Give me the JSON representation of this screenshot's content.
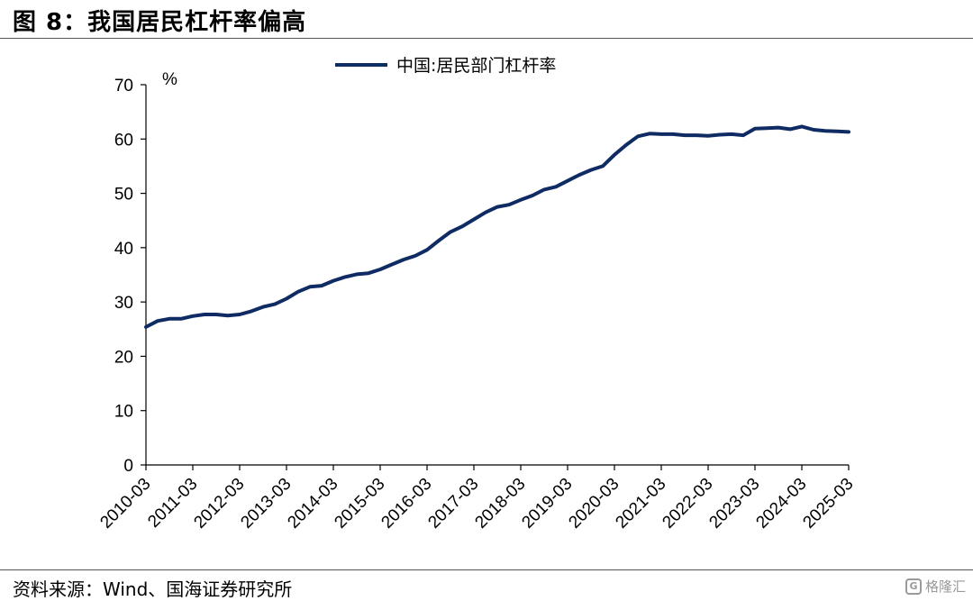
{
  "title": "图 8：我国居民杠杆率偏高",
  "source": "资料来源：Wind、国海证券研究所",
  "watermark": "格隆汇",
  "chart_data": {
    "type": "line",
    "title": "",
    "ylabel": "%",
    "xlabel": "",
    "ylim": [
      0,
      70
    ],
    "yticks": [
      0,
      10,
      20,
      30,
      40,
      50,
      60,
      70
    ],
    "xticks": [
      "2010-03",
      "2011-03",
      "2012-03",
      "2013-03",
      "2014-03",
      "2015-03",
      "2016-03",
      "2017-03",
      "2018-03",
      "2019-03",
      "2020-03",
      "2021-03",
      "2022-03",
      "2023-03",
      "2024-03",
      "2025-03"
    ],
    "legend_position": "top-center",
    "grid": false,
    "series": [
      {
        "name": "中国:居民部门杠杆率",
        "color": "#0F2B63",
        "x": [
          "2010-03",
          "2010-06",
          "2010-09",
          "2010-12",
          "2011-03",
          "2011-06",
          "2011-09",
          "2011-12",
          "2012-03",
          "2012-06",
          "2012-09",
          "2012-12",
          "2013-03",
          "2013-06",
          "2013-09",
          "2013-12",
          "2014-03",
          "2014-06",
          "2014-09",
          "2014-12",
          "2015-03",
          "2015-06",
          "2015-09",
          "2015-12",
          "2016-03",
          "2016-06",
          "2016-09",
          "2016-12",
          "2017-03",
          "2017-06",
          "2017-09",
          "2017-12",
          "2018-03",
          "2018-06",
          "2018-09",
          "2018-12",
          "2019-03",
          "2019-06",
          "2019-09",
          "2019-12",
          "2020-03",
          "2020-06",
          "2020-09",
          "2020-12",
          "2021-03",
          "2021-06",
          "2021-09",
          "2021-12",
          "2022-03",
          "2022-06",
          "2022-09",
          "2022-12",
          "2023-03",
          "2023-06",
          "2023-09",
          "2023-12",
          "2024-03",
          "2024-06",
          "2024-09",
          "2024-12",
          "2025-03"
        ],
        "values": [
          25.4,
          26.5,
          26.9,
          26.9,
          27.4,
          27.7,
          27.7,
          27.5,
          27.7,
          28.3,
          29.1,
          29.6,
          30.6,
          31.9,
          32.8,
          33.0,
          33.9,
          34.6,
          35.1,
          35.3,
          36.0,
          36.9,
          37.8,
          38.5,
          39.6,
          41.3,
          42.9,
          43.9,
          45.2,
          46.5,
          47.5,
          47.9,
          48.8,
          49.6,
          50.7,
          51.2,
          52.3,
          53.4,
          54.3,
          55.0,
          57.1,
          58.9,
          60.5,
          61.0,
          60.9,
          60.9,
          60.7,
          60.7,
          60.6,
          60.8,
          60.9,
          60.7,
          61.9,
          62.0,
          62.1,
          61.8,
          62.3,
          61.7,
          61.5,
          61.4,
          61.3
        ]
      }
    ]
  }
}
